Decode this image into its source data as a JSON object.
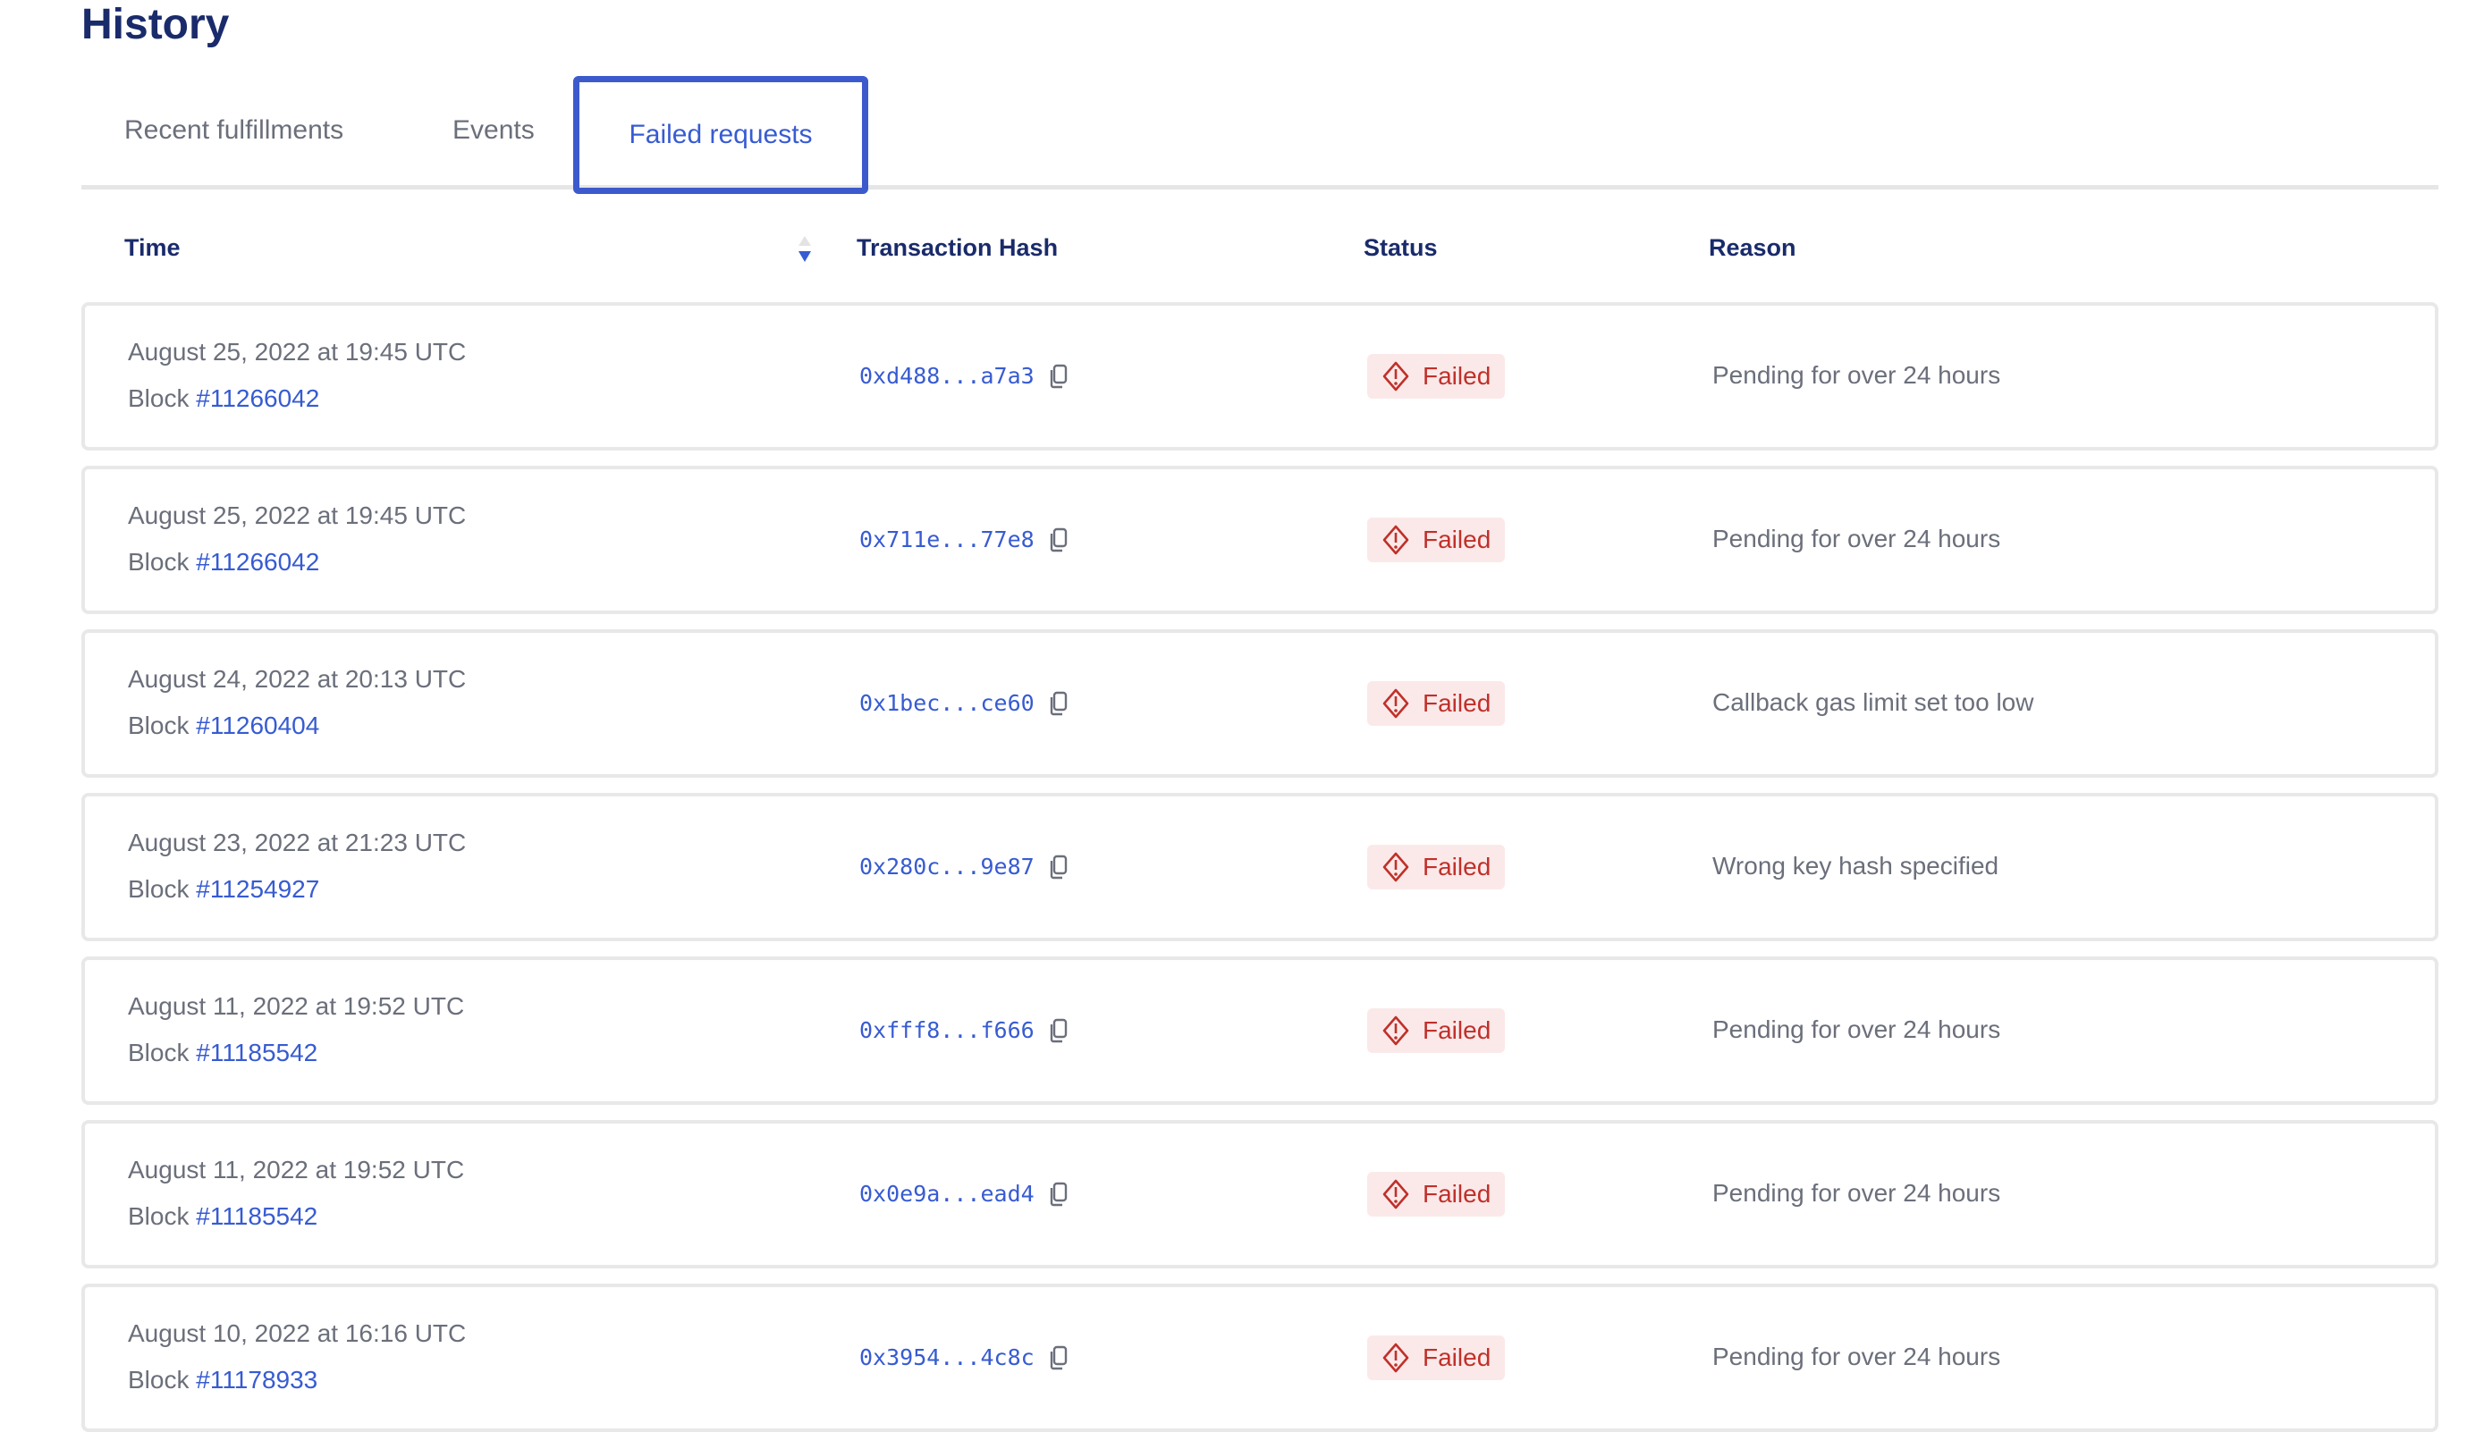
{
  "header": {
    "title": "History"
  },
  "tabs": [
    {
      "label": "Recent fulfillments",
      "active": false
    },
    {
      "label": "Events",
      "active": false
    },
    {
      "label": "Failed requests",
      "active": true
    }
  ],
  "columns": {
    "time": "Time",
    "hash": "Transaction Hash",
    "status": "Status",
    "reason": "Reason"
  },
  "sort": {
    "column": "Time",
    "direction": "descending"
  },
  "colors": {
    "accent": "#375bd2",
    "title": "#1a2b6b",
    "failed_text": "#c0302a",
    "failed_bg": "#fbe9e9"
  },
  "rows": [
    {
      "time": "August 25, 2022 at 19:45 UTC",
      "block_label": "Block",
      "block": "#11266042",
      "hash": "0xd488...a7a3",
      "status": "Failed",
      "reason": "Pending for over 24 hours"
    },
    {
      "time": "August 25, 2022 at 19:45 UTC",
      "block_label": "Block",
      "block": "#11266042",
      "hash": "0x711e...77e8",
      "status": "Failed",
      "reason": "Pending for over 24 hours"
    },
    {
      "time": "August 24, 2022 at 20:13 UTC",
      "block_label": "Block",
      "block": "#11260404",
      "hash": "0x1bec...ce60",
      "status": "Failed",
      "reason": "Callback gas limit set too low"
    },
    {
      "time": "August 23, 2022 at 21:23 UTC",
      "block_label": "Block",
      "block": "#11254927",
      "hash": "0x280c...9e87",
      "status": "Failed",
      "reason": "Wrong key hash specified"
    },
    {
      "time": "August 11, 2022 at 19:52 UTC",
      "block_label": "Block",
      "block": "#11185542",
      "hash": "0xfff8...f666",
      "status": "Failed",
      "reason": "Pending for over 24 hours"
    },
    {
      "time": "August 11, 2022 at 19:52 UTC",
      "block_label": "Block",
      "block": "#11185542",
      "hash": "0x0e9a...ead4",
      "status": "Failed",
      "reason": "Pending for over 24 hours"
    },
    {
      "time": "August 10, 2022 at 16:16 UTC",
      "block_label": "Block",
      "block": "#11178933",
      "hash": "0x3954...4c8c",
      "status": "Failed",
      "reason": "Pending for over 24 hours"
    }
  ]
}
